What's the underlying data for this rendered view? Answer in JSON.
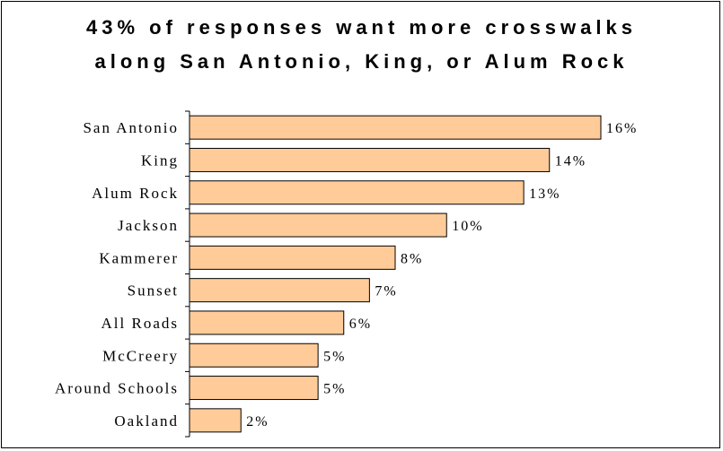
{
  "chart_data": {
    "type": "bar",
    "orientation": "horizontal",
    "title_lines": [
      "43% of responses want more crosswalks",
      "along San Antonio, King, or Alum Rock"
    ],
    "categories": [
      "San Antonio",
      "King",
      "Alum Rock",
      "Jackson",
      "Kammerer",
      "Sunset",
      "All Roads",
      "McCreery",
      "Around Schools",
      "Oakland"
    ],
    "values": [
      16,
      14,
      13,
      10,
      8,
      7,
      6,
      5,
      5,
      2
    ],
    "value_labels": [
      "16%",
      "14%",
      "13%",
      "10%",
      "8%",
      "7%",
      "6%",
      "5%",
      "5%",
      "2%"
    ],
    "unit": "%",
    "xlim": [
      0,
      16
    ],
    "grid": false,
    "legend": "none",
    "bar_color": "#FFCC99"
  }
}
